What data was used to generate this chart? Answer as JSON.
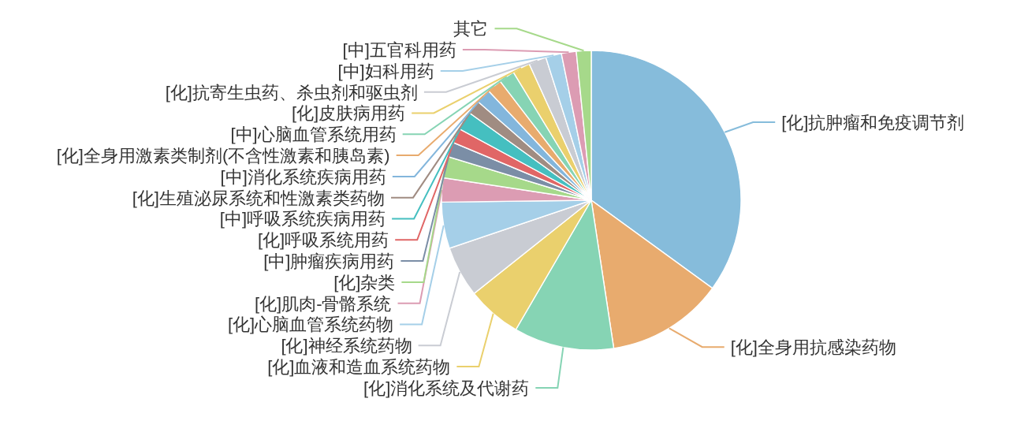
{
  "chart_data": {
    "type": "pie",
    "legend": false,
    "categories": [
      "[化]抗肿瘤和免疫调节剂",
      "[化]全身用抗感染药物",
      "[化]消化系统及代谢药",
      "[化]血液和造血系统药物",
      "[化]神经系统药物",
      "[化]心脑血管系统药物",
      "[化]肌肉-骨骼系统",
      "[化]杂类",
      "[中]肿瘤疾病用药",
      "[化]呼吸系统用药",
      "[中]呼吸系统疾病用药",
      "[化]生殖泌尿系统和性激素类药物",
      "[中]消化系统疾病用药",
      "[化]全身用激素类制剂(不含性激素和胰岛素)",
      "[中]心脑血管系统用药",
      "[化]皮肤病用药",
      "[化]抗寄生虫药、杀虫剂和驱虫剂",
      "[中]妇科用药",
      "[中]五官科用药",
      "其它"
    ],
    "values": [
      35.0,
      12.6,
      10.8,
      5.9,
      5.5,
      5.0,
      2.6,
      2.3,
      1.6,
      1.6,
      2.0,
      1.5,
      1.6,
      1.6,
      1.7,
      1.9,
      1.9,
      1.7,
      1.6,
      1.6
    ],
    "colors": [
      "#86bcdb",
      "#e8ab6e",
      "#86d4b4",
      "#ead06d",
      "#c9ccd3",
      "#a5cfe8",
      "#dc9cb3",
      "#a6d98a",
      "#7b8ea6",
      "#e06666",
      "#45bfc0",
      "#a08c82",
      "#83b6dc",
      "#e8ab6e",
      "#86d4b4",
      "#ead06d",
      "#c9ccd3",
      "#a5cfe8",
      "#dc9cb3",
      "#a6d98a"
    ]
  }
}
